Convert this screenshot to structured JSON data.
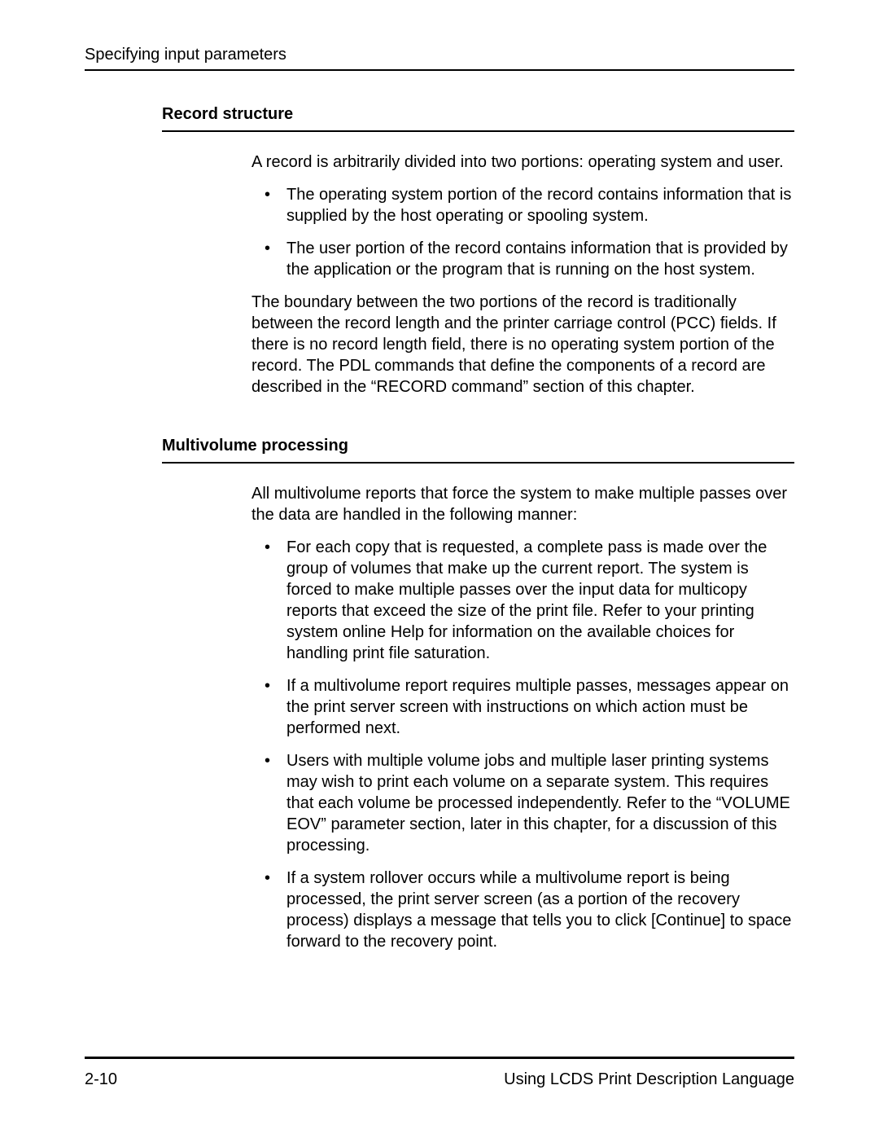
{
  "header": {
    "title": "Specifying input parameters"
  },
  "sections": [
    {
      "heading": "Record structure",
      "intro": "A record is arbitrarily divided into two portions: operating system and user.",
      "bullets": [
        "The operating system portion of the record contains information that is supplied by the host operating or spooling system.",
        "The user portion of the record contains information that is provided by the application or the program that is running on the host system."
      ],
      "closing": "The boundary between the two portions of the record is traditionally between the record length and the printer carriage control (PCC) fields. If there is no record length field, there is no operating system portion of the record. The PDL commands that define the components of a record are described in the “RECORD command” section of this chapter."
    },
    {
      "heading": "Multivolume processing",
      "intro": "All multivolume reports that force the system to make multiple passes over the data are handled in the following manner:",
      "bullets": [
        "For each copy that is requested, a complete pass is made over the group of volumes that make up the current report. The system is forced to make multiple passes over the input data for multicopy reports that exceed the size of the print file. Refer to your printing system online Help for information on the available choices for handling print file saturation.",
        "If a multivolume report requires multiple passes, messages appear on the print server screen with instructions on which action must be performed next.",
        "Users with multiple volume jobs and multiple laser printing systems may wish to print each volume on a separate system. This requires that each volume be processed independently. Refer to the “VOLUME EOV” parameter section, later in this chapter, for a discussion of this processing.",
        "If a system rollover occurs while a multivolume report is being processed, the print server screen (as a portion of the recovery process) displays a message that tells you to click [Continue] to space forward to the recovery point."
      ]
    }
  ],
  "footer": {
    "pageNumber": "2-10",
    "bookTitle": "Using LCDS Print Description Language"
  }
}
